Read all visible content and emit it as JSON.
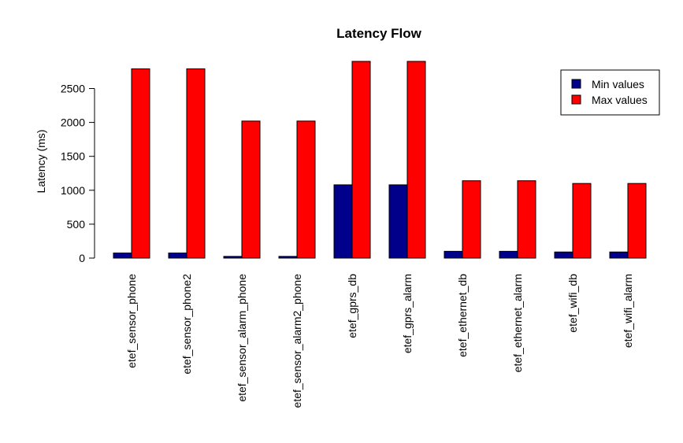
{
  "chart_data": {
    "type": "bar",
    "title": "Latency Flow",
    "xlabel": "",
    "ylabel": "Latency (ms)",
    "ylim": [
      0,
      2900
    ],
    "yticks": [
      0,
      500,
      1000,
      1500,
      2000,
      2500
    ],
    "categories": [
      "etef_sensor_phone",
      "etef_sensor_phone2",
      "etef_sensor_alarm_phone",
      "etef_sensor_alarm2_phone",
      "etef_gprs_db",
      "etef_gprs_alarm",
      "etef_ethernet_db",
      "etef_ethernet_alarm",
      "etef_wifi_db",
      "etef_wifi_alarm"
    ],
    "series": [
      {
        "name": "Min values",
        "color": "#00008B",
        "values": [
          75,
          75,
          25,
          25,
          1080,
          1080,
          100,
          100,
          90,
          90
        ]
      },
      {
        "name": "Max values",
        "color": "#FF0000",
        "values": [
          2790,
          2790,
          2020,
          2020,
          2900,
          2900,
          1140,
          1140,
          1100,
          1100
        ]
      }
    ],
    "grid": false,
    "legend": "top-right"
  }
}
